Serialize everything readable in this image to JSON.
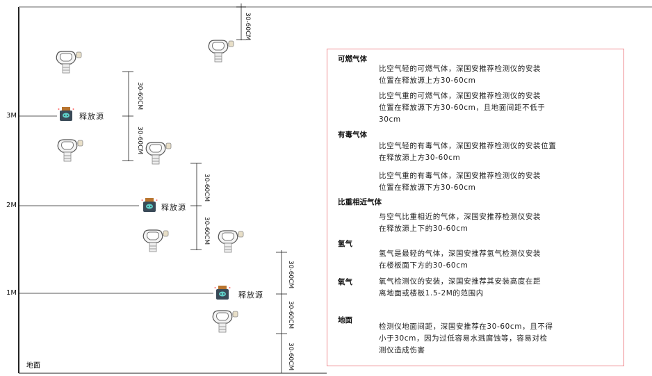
{
  "levels": {
    "m3": "3M",
    "m2": "2M",
    "m1": "1M",
    "ground": "地面"
  },
  "source_label": "释放源",
  "dimension_label": "30-60CM",
  "colors": {
    "border": "#ef8a8f",
    "source_body": "#3a4a58",
    "source_cap": "#b8742e",
    "source_icon": "#5fd0c8"
  },
  "icons": {
    "detector": "gas-detector-icon",
    "source": "gas-release-source-icon"
  },
  "sections": [
    {
      "title": "可燃气体",
      "paras": [
        [
          "比空气轻的可燃气体，深国安推荐检测仪的安装",
          "位置在释放源上方30-60cm"
        ],
        [
          "比空气重的可燃气体，深国安推荐检测仪的安装",
          "位置在释放源下方30-60cm，且地面间距不低于",
          "30cm"
        ]
      ]
    },
    {
      "title": "有毒气体",
      "paras": [
        [
          "比空气轻的有毒气体，深国安推荐检测仪的安装位置",
          "在释放源上方30-60cm"
        ],
        [
          "比空气重的有毒气体，深国安推荐检测仪的安装",
          "位置在释放源下方30-60cm"
        ]
      ]
    },
    {
      "title": "比重相近气体",
      "paras": [
        [
          "与空气比重相近的气体，深国安推荐检测仪安装",
          "在释放源上下的30-60cm"
        ]
      ]
    },
    {
      "title": "氢气",
      "paras": [
        [
          "氢气是最轻的气体，深国安推荐氢气检测仪安装",
          "在楼板面下方的30-60cm"
        ]
      ]
    },
    {
      "title": "氧气",
      "paras": [
        [
          "氧气检测仪的安装，深国安推荐其安装高度在距",
          "离地面或楼板1.5-2M的范围内"
        ]
      ]
    },
    {
      "title": "地面",
      "paras": [
        [
          "检测仪地面间距，深国安推荐在30-60cm，且不得",
          "小于30cm，因为过低容易水溅腐蚀等，容易对检",
          "测仪造成伤害"
        ]
      ]
    }
  ]
}
